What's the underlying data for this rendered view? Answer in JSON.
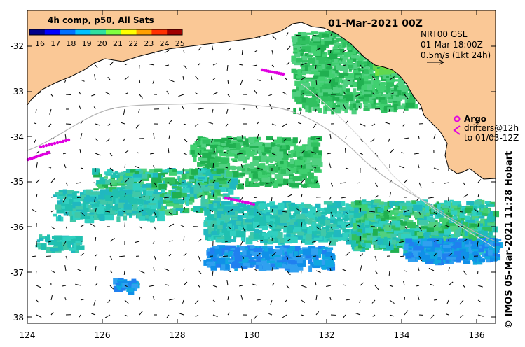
{
  "header": {
    "product": "4h comp, p50, All Sats",
    "date": "01-Mar-2021 00Z"
  },
  "colorbar": {
    "ticks": [
      "16",
      "17",
      "18",
      "19",
      "20",
      "21",
      "22",
      "23",
      "24",
      "25"
    ],
    "colors": [
      "#00008b",
      "#0000ff",
      "#0070ff",
      "#00c0ff",
      "#30e0a0",
      "#80ff40",
      "#ffff00",
      "#ffa000",
      "#ff3000",
      "#a00000"
    ]
  },
  "velocity_legend": {
    "line1": "NRT00 GSL",
    "line2": "01-Mar 18:00Z",
    "line3": "0.5m/s (1kt 24h)"
  },
  "argo_legend": {
    "argo": "Argo",
    "drifters1": "drifters@12h",
    "drifters2": "to 01/03-12Z"
  },
  "axes": {
    "y_ticks": [
      "-32",
      "-33",
      "-34",
      "-35",
      "-36",
      "-37",
      "-38"
    ],
    "x_ticks": [
      "124",
      "126",
      "128",
      "130",
      "132",
      "134",
      "136"
    ]
  },
  "credit": "© IMOS 05-Mar-2021 11:28 Hobart",
  "colors": {
    "land": "#fac896",
    "border": "#000000",
    "drifter": "#e000e0",
    "bathy": "#b4b4b4"
  }
}
